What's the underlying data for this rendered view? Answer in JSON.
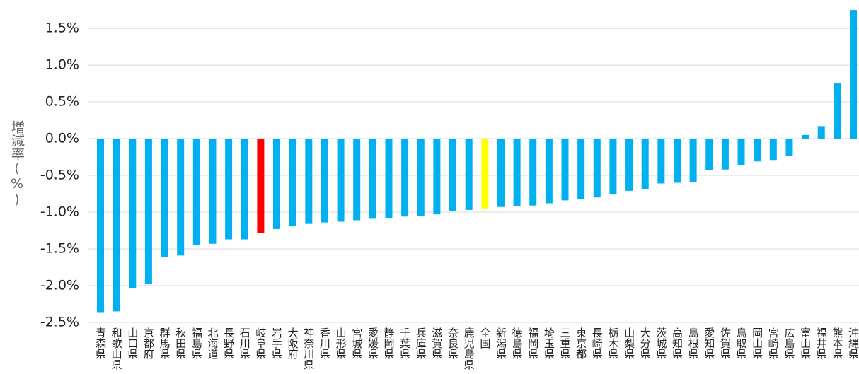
{
  "chart_data": {
    "type": "bar",
    "y_label": "増減率(%)",
    "categories": [
      "青森県",
      "和歌山県",
      "山口県",
      "京都府",
      "群馬県",
      "秋田県",
      "福島県",
      "北海道",
      "長野県",
      "石川県",
      "岐阜県",
      "岩手県",
      "大阪府",
      "神奈川県",
      "香川県",
      "山形県",
      "宮城県",
      "愛媛県",
      "静岡県",
      "千葉県",
      "兵庫県",
      "滋賀県",
      "奈良県",
      "鹿児島県",
      "全国",
      "新潟県",
      "徳島県",
      "福岡県",
      "埼玉県",
      "三重県",
      "東京都",
      "長崎県",
      "栃木県",
      "山梨県",
      "大分県",
      "茨城県",
      "高知県",
      "島根県",
      "愛知県",
      "佐賀県",
      "鳥取県",
      "岡山県",
      "宮崎県",
      "広島県",
      "富山県",
      "福井県",
      "熊本県",
      "沖縄県"
    ],
    "values": [
      -2.37,
      -2.35,
      -2.03,
      -1.98,
      -1.61,
      -1.59,
      -1.45,
      -1.43,
      -1.37,
      -1.37,
      -1.28,
      -1.23,
      -1.19,
      -1.16,
      -1.14,
      -1.13,
      -1.11,
      -1.09,
      -1.08,
      -1.06,
      -1.05,
      -1.03,
      -0.99,
      -0.97,
      -0.95,
      -0.93,
      -0.92,
      -0.91,
      -0.88,
      -0.84,
      -0.82,
      -0.8,
      -0.75,
      -0.71,
      -0.69,
      -0.61,
      -0.6,
      -0.59,
      -0.43,
      -0.42,
      -0.36,
      -0.31,
      -0.3,
      -0.24,
      0.05,
      0.17,
      0.75,
      1.75
    ],
    "colors": [
      "#00b0f0",
      "#00b0f0",
      "#00b0f0",
      "#00b0f0",
      "#00b0f0",
      "#00b0f0",
      "#00b0f0",
      "#00b0f0",
      "#00b0f0",
      "#00b0f0",
      "#ff0000",
      "#00b0f0",
      "#00b0f0",
      "#00b0f0",
      "#00b0f0",
      "#00b0f0",
      "#00b0f0",
      "#00b0f0",
      "#00b0f0",
      "#00b0f0",
      "#00b0f0",
      "#00b0f0",
      "#00b0f0",
      "#00b0f0",
      "#ffff00",
      "#00b0f0",
      "#00b0f0",
      "#00b0f0",
      "#00b0f0",
      "#00b0f0",
      "#00b0f0",
      "#00b0f0",
      "#00b0f0",
      "#00b0f0",
      "#00b0f0",
      "#00b0f0",
      "#00b0f0",
      "#00b0f0",
      "#00b0f0",
      "#00b0f0",
      "#00b0f0",
      "#00b0f0",
      "#00b0f0",
      "#00b0f0",
      "#00b0f0",
      "#00b0f0",
      "#00b0f0",
      "#00b0f0"
    ],
    "ylim": [
      -2.5,
      1.77
    ],
    "yticks": [
      {
        "value": -2.5,
        "label": "-2.5%"
      },
      {
        "value": -2.0,
        "label": "-2.0%"
      },
      {
        "value": -1.5,
        "label": "-1.5%"
      },
      {
        "value": -1.0,
        "label": "-1.0%"
      },
      {
        "value": -0.5,
        "label": "-0.5%"
      },
      {
        "value": 0.0,
        "label": "0.0%"
      },
      {
        "value": 0.5,
        "label": "0.5%"
      },
      {
        "value": 1.0,
        "label": "1.0%"
      },
      {
        "value": 1.5,
        "label": "1.5%"
      }
    ],
    "grid": true
  }
}
